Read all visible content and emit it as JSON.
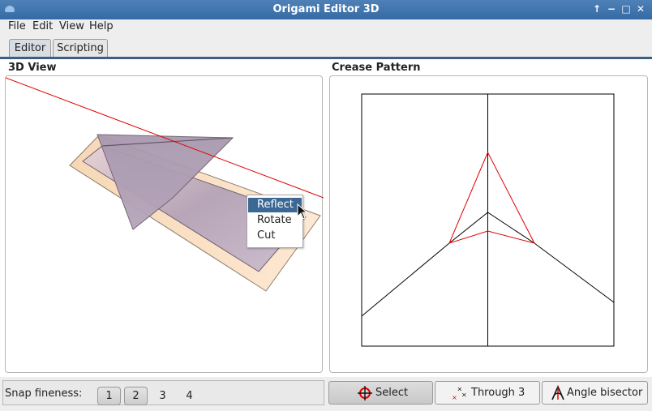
{
  "window": {
    "title": "Origami Editor 3D",
    "controls": [
      "↑",
      "−",
      "□",
      "✕"
    ]
  },
  "menubar": {
    "items": [
      "File",
      "Edit",
      "View",
      "Help"
    ]
  },
  "tabs": [
    {
      "label": "Editor",
      "active": true
    },
    {
      "label": "Scripting",
      "active": false
    }
  ],
  "view3d": {
    "title": "3D View"
  },
  "crease_pattern": {
    "title": "Crease Pattern"
  },
  "context_menu": {
    "items": [
      {
        "label": "Reflect",
        "selected": true
      },
      {
        "label": "Rotate",
        "selected": false
      },
      {
        "label": "Cut",
        "selected": false
      }
    ]
  },
  "statusbar": {
    "snap_label": "Snap fineness:",
    "snap_options": [
      {
        "label": "1",
        "selected": true
      },
      {
        "label": "2",
        "selected": true
      },
      {
        "label": "3",
        "selected": false
      },
      {
        "label": "4",
        "selected": false
      }
    ],
    "tools": [
      {
        "label": "Select",
        "icon": "crosshair-icon",
        "selected": true
      },
      {
        "label": "Through 3",
        "icon": "through-3-icon",
        "selected": false
      },
      {
        "label": "Angle bisector",
        "icon": "angle-bisector-icon",
        "selected": false
      }
    ]
  },
  "colors": {
    "titlebar": "#4375ad",
    "accent": "#3b6894",
    "crease_red": "#e00000",
    "paper_front": "#c0aec4",
    "paper_back": "#fde6cc"
  }
}
